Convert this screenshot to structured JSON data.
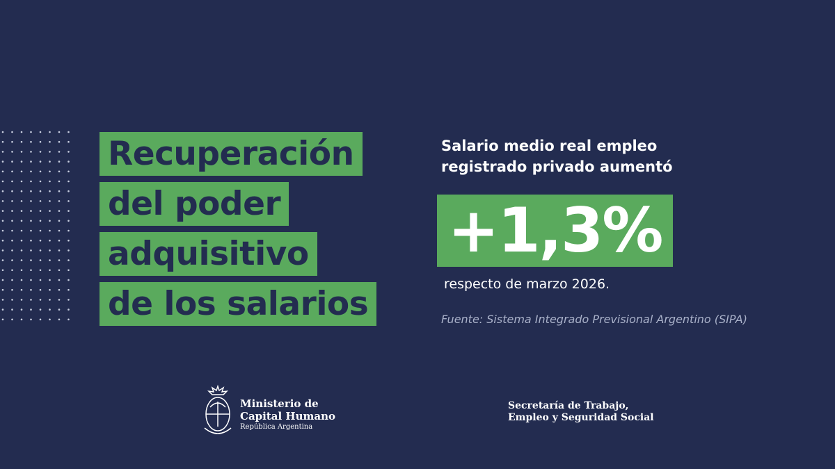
{
  "headline": {
    "lines": [
      "Recuperación",
      "del poder",
      "adquisitivo",
      "de los salarios"
    ]
  },
  "stat": {
    "intro_lines": [
      "Salario medio real empleo",
      "registrado privado aumentó"
    ],
    "value": "+1,3%",
    "comparison": "respecto de marzo 2026.",
    "source": "Fuente: Sistema Integrado Previsional Argentino (SIPA)"
  },
  "footer": {
    "ministry": {
      "lines": [
        "Ministerio de",
        "Capital Humano"
      ],
      "country": "República Argentina"
    },
    "secretariat": {
      "lines": [
        "Secretaría de Trabajo,",
        "Empleo y Seguridad Social"
      ]
    }
  }
}
